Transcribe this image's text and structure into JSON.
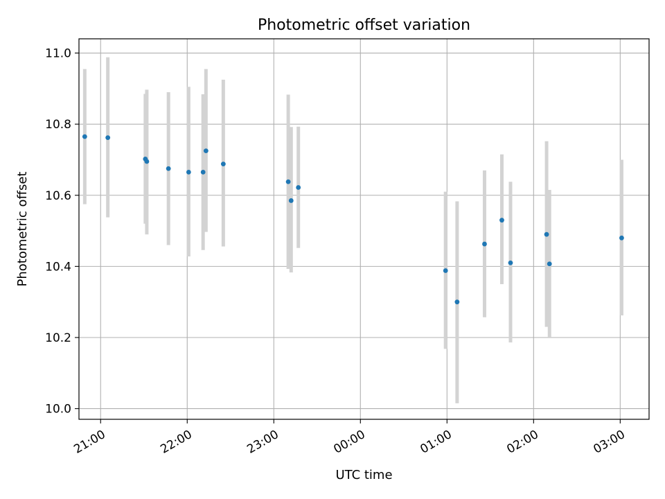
{
  "chart_data": {
    "type": "scatter",
    "title": "Photometric offset variation",
    "xlabel": "UTC time",
    "ylabel": "Photometric offset",
    "x_axis_type": "time",
    "xlim": [
      "2024-01-01T20:45",
      "2024-01-02T03:20"
    ],
    "ylim": [
      9.97,
      11.04
    ],
    "x_ticks": [
      {
        "t": "2024-01-01T21:00",
        "label": "21:00"
      },
      {
        "t": "2024-01-01T22:00",
        "label": "22:00"
      },
      {
        "t": "2024-01-01T23:00",
        "label": "23:00"
      },
      {
        "t": "2024-01-02T00:00",
        "label": "00:00"
      },
      {
        "t": "2024-01-02T01:00",
        "label": "01:00"
      },
      {
        "t": "2024-01-02T02:00",
        "label": "02:00"
      },
      {
        "t": "2024-01-02T03:00",
        "label": "03:00"
      }
    ],
    "y_ticks": [
      {
        "v": 10.0,
        "label": "10.0"
      },
      {
        "v": 10.2,
        "label": "10.2"
      },
      {
        "v": 10.4,
        "label": "10.4"
      },
      {
        "v": 10.6,
        "label": "10.6"
      },
      {
        "v": 10.8,
        "label": "10.8"
      },
      {
        "v": 11.0,
        "label": "11.0"
      }
    ],
    "grid": true,
    "point_color": "#1f77b4",
    "errorbar_color": "#d3d3d3",
    "grid_color": "#b0b0b0",
    "points": [
      {
        "t": "2024-01-01T20:49",
        "y": 10.765,
        "lo": 10.575,
        "hi": 10.955
      },
      {
        "t": "2024-01-01T21:05",
        "y": 10.762,
        "lo": 10.538,
        "hi": 10.988
      },
      {
        "t": "2024-01-01T21:31",
        "y": 10.702,
        "lo": 10.52,
        "hi": 10.885
      },
      {
        "t": "2024-01-01T21:32",
        "y": 10.695,
        "lo": 10.49,
        "hi": 10.897
      },
      {
        "t": "2024-01-01T21:47",
        "y": 10.675,
        "lo": 10.46,
        "hi": 10.89
      },
      {
        "t": "2024-01-01T22:01",
        "y": 10.665,
        "lo": 10.428,
        "hi": 10.905
      },
      {
        "t": "2024-01-01T22:11",
        "y": 10.665,
        "lo": 10.446,
        "hi": 10.884
      },
      {
        "t": "2024-01-01T22:13",
        "y": 10.725,
        "lo": 10.497,
        "hi": 10.955
      },
      {
        "t": "2024-01-01T22:25",
        "y": 10.688,
        "lo": 10.456,
        "hi": 10.925
      },
      {
        "t": "2024-01-01T23:10",
        "y": 10.638,
        "lo": 10.393,
        "hi": 10.883
      },
      {
        "t": "2024-01-01T23:12",
        "y": 10.585,
        "lo": 10.383,
        "hi": 10.792
      },
      {
        "t": "2024-01-01T23:17",
        "y": 10.622,
        "lo": 10.452,
        "hi": 10.793
      },
      {
        "t": "2024-01-02T00:59",
        "y": 10.388,
        "lo": 10.168,
        "hi": 10.61
      },
      {
        "t": "2024-01-02T01:07",
        "y": 10.3,
        "lo": 10.015,
        "hi": 10.583
      },
      {
        "t": "2024-01-02T01:26",
        "y": 10.463,
        "lo": 10.257,
        "hi": 10.67
      },
      {
        "t": "2024-01-02T01:38",
        "y": 10.53,
        "lo": 10.35,
        "hi": 10.715
      },
      {
        "t": "2024-01-02T01:44",
        "y": 10.41,
        "lo": 10.186,
        "hi": 10.638
      },
      {
        "t": "2024-01-02T02:09",
        "y": 10.49,
        "lo": 10.23,
        "hi": 10.752
      },
      {
        "t": "2024-01-02T02:11",
        "y": 10.407,
        "lo": 10.2,
        "hi": 10.615
      },
      {
        "t": "2024-01-02T03:01",
        "y": 10.48,
        "lo": 10.262,
        "hi": 10.7
      }
    ]
  }
}
